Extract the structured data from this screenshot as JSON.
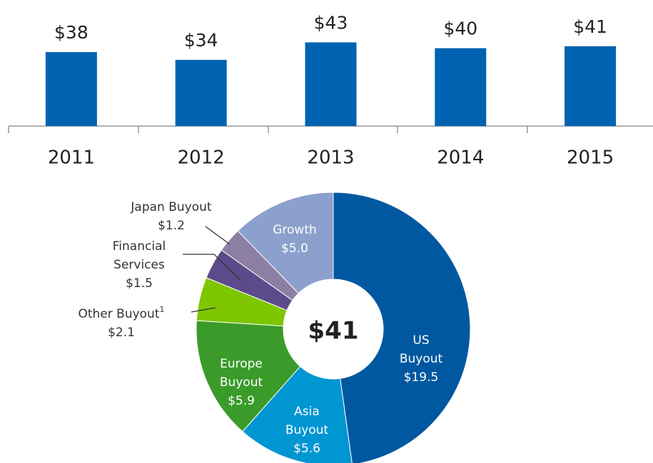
{
  "chart_data": [
    {
      "type": "bar",
      "categories": [
        "2011",
        "2012",
        "2013",
        "2014",
        "2015"
      ],
      "values": [
        38,
        34,
        43,
        40,
        41
      ],
      "value_labels": [
        "$38",
        "$34",
        "$43",
        "$40",
        "$41"
      ],
      "color": "#0063b1",
      "ylim": [
        0,
        60
      ]
    },
    {
      "type": "donut",
      "center_label": "$41",
      "categories": [
        "US Buyout",
        "Asia Buyout",
        "Europe Buyout",
        "Other Buyout",
        "Financial Services",
        "Japan Buyout",
        "Growth"
      ],
      "values": [
        19.5,
        5.6,
        5.9,
        2.1,
        1.5,
        1.2,
        5.0
      ],
      "value_labels": [
        "$19.5",
        "$5.6",
        "$5.9",
        "$2.1",
        "$1.5",
        "$1.2",
        "$5.0"
      ],
      "notes": [
        null,
        null,
        null,
        "1",
        null,
        null,
        null
      ],
      "colors": [
        "#0058a0",
        "#0096d2",
        "#3a9b2a",
        "#7dc600",
        "#5c4b8a",
        "#8c7fa3",
        "#8ba0cc"
      ]
    }
  ]
}
